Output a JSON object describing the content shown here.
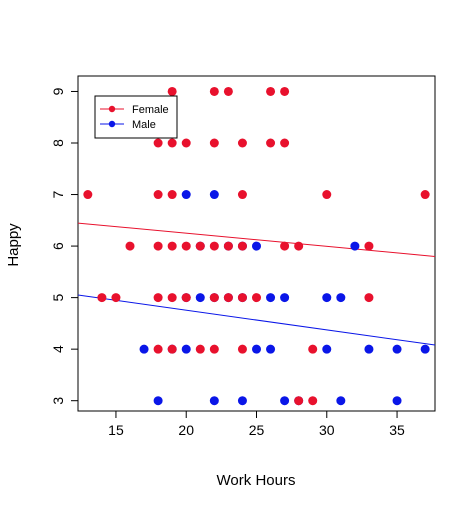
{
  "chart_data": {
    "type": "scatter",
    "title": "",
    "xlabel": "Work Hours",
    "ylabel": "Happy",
    "xlim": [
      12.3,
      37.7
    ],
    "ylim": [
      2.8,
      9.3
    ],
    "xticks": [
      15,
      20,
      25,
      30,
      35
    ],
    "yticks": [
      3,
      4,
      5,
      6,
      7,
      8,
      9
    ],
    "grid": false,
    "legend_position": "top-left",
    "series": [
      {
        "name": "Female",
        "color": "#e8112d",
        "points": [
          [
            13,
            7
          ],
          [
            14,
            5
          ],
          [
            15,
            5
          ],
          [
            16,
            6
          ],
          [
            18,
            8
          ],
          [
            18,
            7
          ],
          [
            18,
            6
          ],
          [
            18,
            5
          ],
          [
            18,
            4
          ],
          [
            19,
            9
          ],
          [
            19,
            8
          ],
          [
            19,
            7
          ],
          [
            19,
            6
          ],
          [
            19,
            5
          ],
          [
            19,
            4
          ],
          [
            20,
            8
          ],
          [
            20,
            6
          ],
          [
            20,
            5
          ],
          [
            21,
            6
          ],
          [
            21,
            4
          ],
          [
            22,
            9
          ],
          [
            22,
            8
          ],
          [
            22,
            6
          ],
          [
            22,
            5
          ],
          [
            22,
            4
          ],
          [
            23,
            9
          ],
          [
            23,
            6
          ],
          [
            23,
            5
          ],
          [
            24,
            8
          ],
          [
            24,
            7
          ],
          [
            24,
            6
          ],
          [
            24,
            5
          ],
          [
            24,
            4
          ],
          [
            25,
            5
          ],
          [
            26,
            9
          ],
          [
            26,
            8
          ],
          [
            27,
            9
          ],
          [
            27,
            8
          ],
          [
            27,
            6
          ],
          [
            28,
            6
          ],
          [
            28,
            3
          ],
          [
            29,
            4
          ],
          [
            29,
            3
          ],
          [
            30,
            7
          ],
          [
            33,
            6
          ],
          [
            33,
            5
          ],
          [
            37,
            7
          ]
        ],
        "trend": {
          "intercept": 6.76,
          "slope": -0.0255
        }
      },
      {
        "name": "Male",
        "color": "#0a16e8",
        "points": [
          [
            17,
            4
          ],
          [
            18,
            3
          ],
          [
            19,
            4
          ],
          [
            20,
            7
          ],
          [
            20,
            5
          ],
          [
            20,
            4
          ],
          [
            21,
            6
          ],
          [
            21,
            5
          ],
          [
            22,
            7
          ],
          [
            22,
            5
          ],
          [
            22,
            3
          ],
          [
            23,
            6
          ],
          [
            23,
            5
          ],
          [
            24,
            6
          ],
          [
            24,
            5
          ],
          [
            24,
            3
          ],
          [
            25,
            6
          ],
          [
            25,
            4
          ],
          [
            26,
            5
          ],
          [
            26,
            4
          ],
          [
            27,
            5
          ],
          [
            27,
            3
          ],
          [
            28,
            3
          ],
          [
            30,
            5
          ],
          [
            30,
            4
          ],
          [
            31,
            5
          ],
          [
            31,
            3
          ],
          [
            32,
            6
          ],
          [
            33,
            4
          ],
          [
            35,
            4
          ],
          [
            35,
            3
          ],
          [
            37,
            4
          ]
        ],
        "trend": {
          "intercept": 5.52,
          "slope": -0.0382
        }
      }
    ]
  }
}
